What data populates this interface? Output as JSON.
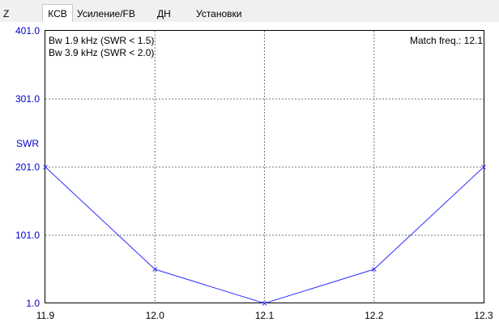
{
  "tabs": [
    {
      "label": "Z",
      "active": false
    },
    {
      "label": "КСВ",
      "active": true
    },
    {
      "label": "Усиление/FB",
      "active": false
    },
    {
      "label": "ДН",
      "active": false
    },
    {
      "label": "Установки",
      "active": false
    }
  ],
  "annotations": {
    "bw_15": "Bw 1.9 kHz (SWR < 1.5)",
    "bw_20": "Bw 3.9 kHz (SWR < 2.0)",
    "match_freq": "Match freq.: 12.1"
  },
  "colors": {
    "series": "#3030ff",
    "axis_label": "#0000cc",
    "grid": "#7a7a7a",
    "tabbar": "#f0f0f0"
  },
  "chart_data": {
    "type": "line",
    "ylabel": "SWR",
    "xlabel": "",
    "xlim": [
      11.9,
      12.3
    ],
    "ylim": [
      1.0,
      401.0
    ],
    "x_ticks": [
      "11.9",
      "12.0",
      "12.1",
      "12.2",
      "12.3"
    ],
    "y_ticks": [
      "401.0",
      "301.0",
      "201.0",
      "101.0",
      "1.0"
    ],
    "grid": true,
    "x": [
      11.9,
      12.0,
      12.1,
      12.2,
      12.3
    ],
    "series": [
      {
        "values": [
          201.0,
          51.0,
          1.0,
          51.0,
          201.0
        ]
      }
    ]
  }
}
